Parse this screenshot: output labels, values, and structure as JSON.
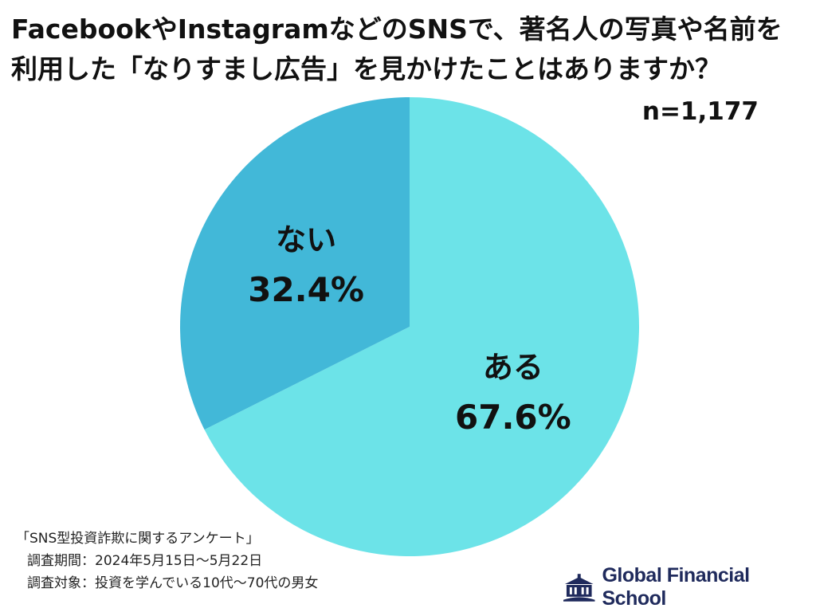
{
  "chart_data": {
    "type": "pie",
    "title": "FacebookやInstagramなどのSNSで、著名人の写真や名前を\n利用した「なりすまし広告」を見かけたことはありますか？",
    "sample_size": "n=1,177",
    "slices": [
      {
        "label": "ある",
        "value": 67.6,
        "value_label": "67.6%",
        "color": "#6ce3e8"
      },
      {
        "label": "ない",
        "value": 32.4,
        "value_label": "32.4%",
        "color": "#42b8d8"
      }
    ],
    "start": "12 o'clock",
    "direction": "clockwise",
    "legend": "none"
  },
  "notes": {
    "survey_name": "「SNS型投資詐欺に関するアンケート」",
    "period": "調査期間：2024年5月15日～5月22日",
    "target": "調査対象：投資を学んでいる10代～70代の男女"
  },
  "brand": {
    "name": "Global Financial School",
    "icon": "school-building-icon",
    "color": "#1f2a5c"
  }
}
